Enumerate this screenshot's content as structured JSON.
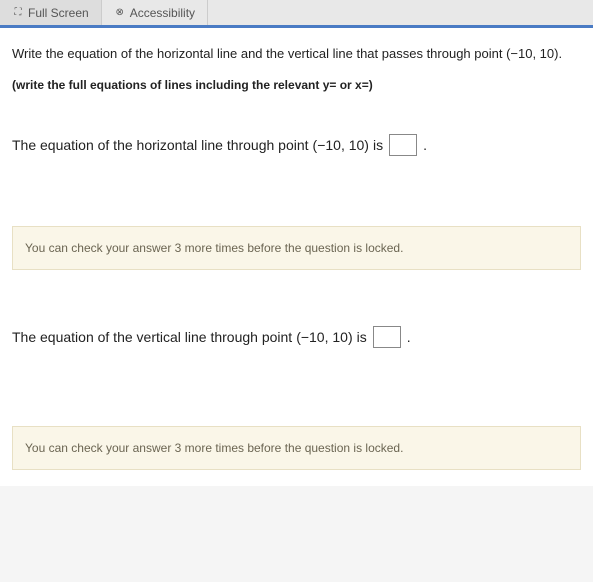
{
  "tabs": {
    "fullscreen": {
      "label": "Full Screen",
      "icon": "⛶"
    },
    "accessibility": {
      "label": "Accessibility",
      "icon": "⊗"
    }
  },
  "prompt": {
    "main_prefix": "Write the equation of the horizontal line and the vertical line that passes through point ",
    "main_point": "(−10, 10).",
    "sub": "(write the full equations of lines including the relevant y= or x=)"
  },
  "question1": {
    "text_prefix": "The equation of the horizontal line through point ",
    "point": "(−10, 10)",
    "text_suffix": " is ",
    "period": "."
  },
  "banner1": "You can check your answer 3 more times before the question is locked.",
  "question2": {
    "text_prefix": "The equation of the vertical line through point ",
    "point": "(−10, 10)",
    "text_suffix": " is ",
    "period": "."
  },
  "banner2": "You can check your answer 3 more times before the question is locked.",
  "colors": {
    "tab_border": "#4a7bc4",
    "banner_bg": "#faf6e8",
    "banner_border": "#e8e0c4",
    "banner_text": "#6b6552"
  }
}
